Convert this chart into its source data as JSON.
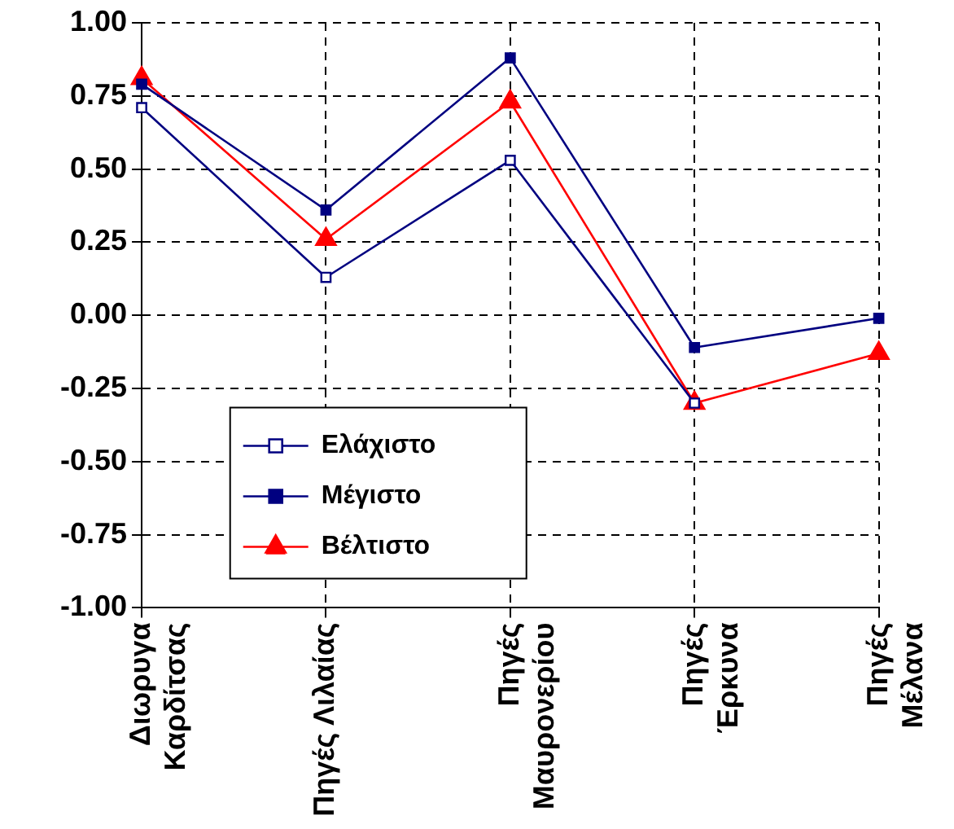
{
  "chart_data": {
    "type": "line",
    "categories": [
      "Διωρυγα\nΚαρδίτσας",
      "Πηγές Λιλαίας",
      "Πηγές\nΜαυρονερίου",
      "Πηγές\nΈρκυνα",
      "Πηγές\nΜέλανα"
    ],
    "series": [
      {
        "name": "Ελάχιστο",
        "color": "#000080",
        "marker": "square-open",
        "values": [
          0.71,
          0.13,
          0.53,
          -0.3,
          null
        ]
      },
      {
        "name": "Μέγιστο",
        "color": "#000080",
        "marker": "square",
        "values": [
          0.79,
          0.36,
          0.88,
          -0.11,
          -0.01
        ]
      },
      {
        "name": "Βέλτιστο",
        "color": "#ff0000",
        "marker": "triangle",
        "values": [
          0.81,
          0.26,
          0.73,
          -0.3,
          -0.13
        ]
      }
    ],
    "ylim": [
      -1,
      1
    ],
    "yticks": [
      {
        "value": 1,
        "label": "1.00"
      },
      {
        "value": 0.75,
        "label": "0.75"
      },
      {
        "value": 0.5,
        "label": "0.50"
      },
      {
        "value": 0.25,
        "label": "0.25"
      },
      {
        "value": 0,
        "label": "0.00"
      },
      {
        "value": -0.25,
        "label": "-0.25"
      },
      {
        "value": -0.5,
        "label": "-0.50"
      },
      {
        "value": -0.75,
        "label": "-0.75"
      },
      {
        "value": -1,
        "label": "-1.00"
      }
    ],
    "grid": true,
    "legend": "bottom left",
    "line_style": "solid"
  }
}
